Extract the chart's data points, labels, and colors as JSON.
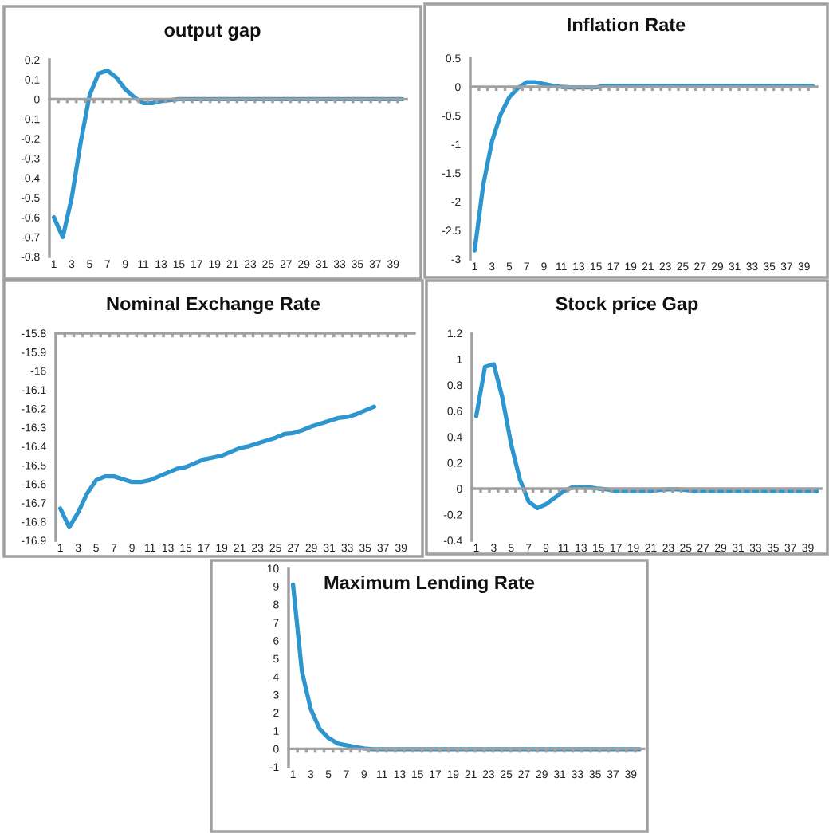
{
  "chart_data": [
    {
      "type": "line",
      "title": "output gap",
      "categories": [
        "1",
        null,
        "3",
        null,
        "5",
        null,
        "7",
        null,
        "9",
        null,
        "11",
        null,
        "13",
        null,
        "15",
        null,
        "17",
        null,
        "19",
        null,
        "21",
        null,
        "23",
        null,
        "25",
        null,
        "27",
        null,
        "29",
        null,
        "31",
        null,
        "33",
        null,
        "35",
        null,
        "37",
        null,
        "39",
        null
      ],
      "series": [
        {
          "color": "#2e96cf",
          "values": [
            -0.6,
            -0.7,
            -0.5,
            -0.22,
            0.02,
            0.13,
            0.145,
            0.11,
            0.05,
            0.01,
            -0.02,
            -0.02,
            -0.01,
            -0.005,
            0,
            0,
            0,
            0,
            0,
            0,
            0,
            0,
            0,
            0,
            0,
            0,
            0,
            0,
            0,
            0,
            0,
            0,
            0,
            0,
            0,
            0,
            0,
            0,
            0,
            0
          ]
        }
      ],
      "ylim": [
        -0.8,
        0.2
      ],
      "yticks": [
        -0.8,
        -0.7,
        -0.6,
        -0.5,
        -0.4,
        -0.3,
        -0.2,
        -0.1,
        0,
        0.1,
        0.2
      ],
      "marker": "none",
      "line_style": "solid"
    },
    {
      "type": "line",
      "title": "Inflation Rate",
      "categories": [
        "1",
        null,
        "3",
        null,
        "5",
        null,
        "7",
        null,
        "9",
        null,
        "11",
        null,
        "13",
        null,
        "15",
        null,
        "17",
        null,
        "19",
        null,
        "21",
        null,
        "23",
        null,
        "25",
        null,
        "27",
        null,
        "29",
        null,
        "31",
        null,
        "33",
        null,
        "35",
        null,
        "37",
        null,
        "39",
        null
      ],
      "series": [
        {
          "color": "#2e96cf",
          "values": [
            -2.85,
            -1.7,
            -0.95,
            -0.48,
            -0.18,
            -0.02,
            0.08,
            0.08,
            0.05,
            0.02,
            0,
            -0.01,
            -0.01,
            -0.01,
            -0.01,
            0.02,
            0.02,
            0.02,
            0.02,
            0.02,
            0.02,
            0.02,
            0.02,
            0.02,
            0.02,
            0.02,
            0.02,
            0.02,
            0.02,
            0.02,
            0.02,
            0.02,
            0.02,
            0.02,
            0.02,
            0.02,
            0.02,
            0.02,
            0.02,
            0.02
          ]
        }
      ],
      "ylim": [
        -3,
        0.5
      ],
      "yticks": [
        -3,
        -2.5,
        -2,
        -1.5,
        -1,
        -0.5,
        0,
        0.5
      ],
      "marker": "none",
      "line_style": "solid"
    },
    {
      "type": "line",
      "title": "Nominal Exchange Rate",
      "categories": [
        "1",
        null,
        "3",
        null,
        "5",
        null,
        "7",
        null,
        "9",
        null,
        "11",
        null,
        "13",
        null,
        "15",
        null,
        "17",
        null,
        "19",
        null,
        "21",
        null,
        "23",
        null,
        "25",
        null,
        "27",
        null,
        "29",
        null,
        "31",
        null,
        "33",
        null,
        "35",
        null,
        "37",
        null,
        "39",
        null
      ],
      "series": [
        {
          "color": "#2e96cf",
          "values": [
            -16.73,
            -16.83,
            -16.75,
            -16.65,
            -16.58,
            -16.56,
            -16.56,
            -16.575,
            -16.59,
            -16.59,
            -16.58,
            -16.56,
            -16.54,
            -16.52,
            -16.51,
            -16.49,
            -16.47,
            -16.46,
            -16.45,
            -16.43,
            -16.41,
            -16.4,
            -16.385,
            -16.37,
            -16.355,
            -16.335,
            -16.33,
            -16.315,
            -16.295,
            -16.28,
            -16.265,
            -16.25,
            -16.245,
            -16.23,
            -16.21,
            -16.19,
            null,
            null,
            null,
            null
          ]
        }
      ],
      "ylim": [
        -16.9,
        -15.8
      ],
      "yticks": [
        -16.9,
        -16.8,
        -16.7,
        -16.6,
        -16.5,
        -16.4,
        -16.3,
        -16.2,
        -16.1,
        -16,
        -15.9,
        -15.8
      ],
      "grid": false,
      "marker": "none",
      "line_style": "solid"
    },
    {
      "type": "line",
      "title": "Stock price Gap",
      "categories": [
        "1",
        null,
        "3",
        null,
        "5",
        null,
        "7",
        null,
        "9",
        null,
        "11",
        null,
        "13",
        null,
        "15",
        null,
        "17",
        null,
        "19",
        null,
        "21",
        null,
        "23",
        null,
        "25",
        null,
        "27",
        null,
        "29",
        null,
        "31",
        null,
        "33",
        null,
        "35",
        null,
        "37",
        null,
        "39",
        null
      ],
      "series": [
        {
          "color": "#2e96cf",
          "values": [
            0.56,
            0.94,
            0.96,
            0.7,
            0.34,
            0.07,
            -0.1,
            -0.15,
            -0.12,
            -0.07,
            -0.02,
            0.01,
            0.01,
            0.01,
            0,
            -0.005,
            -0.02,
            -0.02,
            -0.02,
            -0.02,
            -0.02,
            -0.01,
            -0.005,
            -0.005,
            -0.01,
            -0.02,
            -0.02,
            -0.02,
            -0.02,
            -0.02,
            -0.02,
            -0.02,
            -0.02,
            -0.02,
            -0.02,
            -0.02,
            -0.02,
            -0.02,
            -0.02,
            -0.02
          ]
        }
      ],
      "ylim": [
        -0.4,
        1.2
      ],
      "yticks": [
        -0.4,
        -0.2,
        0,
        0.2,
        0.4,
        0.6,
        0.8,
        1,
        1.2
      ],
      "marker": "none",
      "line_style": "solid"
    },
    {
      "type": "line",
      "title": "Maximum Lending Rate",
      "categories": [
        "1",
        null,
        "3",
        null,
        "5",
        null,
        "7",
        null,
        "9",
        null,
        "11",
        null,
        "13",
        null,
        "15",
        null,
        "17",
        null,
        "19",
        null,
        "21",
        null,
        "23",
        null,
        "25",
        null,
        "27",
        null,
        "29",
        null,
        "31",
        null,
        "33",
        null,
        "35",
        null,
        "37",
        null,
        "39",
        null
      ],
      "series": [
        {
          "color": "#2e96cf",
          "values": [
            9.1,
            4.3,
            2.2,
            1.1,
            0.6,
            0.3,
            0.2,
            0.1,
            0.02,
            -0.02,
            -0.02,
            -0.02,
            -0.02,
            -0.02,
            -0.02,
            -0.02,
            -0.02,
            -0.02,
            -0.02,
            -0.02,
            -0.02,
            -0.02,
            -0.02,
            -0.02,
            -0.02,
            -0.02,
            -0.02,
            -0.02,
            -0.02,
            -0.02,
            -0.02,
            -0.02,
            -0.02,
            -0.02,
            -0.02,
            -0.02,
            -0.02,
            -0.02,
            -0.02,
            -0.02
          ]
        }
      ],
      "ylim": [
        -1,
        10
      ],
      "yticks": [
        -1,
        0,
        1,
        2,
        3,
        4,
        5,
        6,
        7,
        8,
        9,
        10
      ],
      "grid": false,
      "marker": "none",
      "line_style": "solid"
    }
  ]
}
